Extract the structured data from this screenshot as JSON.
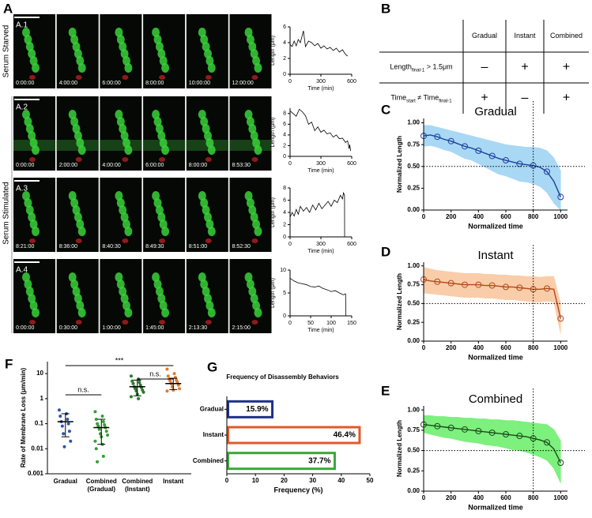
{
  "panels": [
    "A",
    "B",
    "C",
    "D",
    "E",
    "F",
    "G"
  ],
  "panel_a": {
    "side_labels": [
      "Serum Starved",
      "Serum Stimulated"
    ],
    "rows": [
      {
        "label": "A.1",
        "times": [
          "0:00:00",
          "4:00:00",
          "6:00:00",
          "8:00:00",
          "10:00:00",
          "12:00:00"
        ]
      },
      {
        "label": "A.2",
        "times": [
          "0:00:00",
          "2:00:00",
          "4:00:00",
          "6:00:00",
          "8:00:00",
          "8:53:30"
        ]
      },
      {
        "label": "A.3",
        "times": [
          "8:21:00",
          "8:36:00",
          "8:40:30",
          "8:49:30",
          "8:51:00",
          "8:52:30"
        ]
      },
      {
        "label": "A.4",
        "times": [
          "0:00:00",
          "0:30:00",
          "1:00:00",
          "1:45:00",
          "2:13:30",
          "2:15:00"
        ]
      }
    ]
  },
  "table": {
    "header": [
      "Gradual",
      "Instant",
      "Combined"
    ],
    "rows": [
      {
        "label": [
          "Length",
          "final-1",
          " > 1.5μm"
        ],
        "cells": [
          "–",
          "+",
          "+"
        ]
      },
      {
        "label": [
          "Time",
          "start",
          " ≠ Time",
          "final-1"
        ],
        "cells": [
          "+",
          "–",
          "+"
        ]
      }
    ]
  },
  "chart_data": [
    {
      "type": "line",
      "ylabel": "Length (μm)",
      "xlabel": "Time (min)",
      "xlim": [
        0,
        600
      ],
      "ylim": [
        0,
        6
      ],
      "xticks": [
        0,
        300,
        600
      ],
      "yticks": [
        0,
        2,
        4,
        6
      ],
      "x": [
        0,
        20,
        40,
        60,
        80,
        100,
        120,
        130,
        150,
        180,
        210,
        240,
        270,
        300,
        330,
        360,
        390,
        420,
        450,
        480,
        510,
        540,
        560
      ],
      "series": [
        {
          "color": "#000000",
          "values": [
            3.8,
            3.5,
            4.2,
            3.6,
            4.4,
            4.0,
            5.0,
            5.5,
            3.5,
            4.2,
            4.0,
            3.6,
            3.9,
            3.3,
            3.6,
            3.2,
            3.4,
            3.0,
            3.3,
            2.8,
            3.1,
            2.5,
            2.3
          ]
        }
      ]
    },
    {
      "type": "line",
      "ylabel": "Length (μm)",
      "xlabel": "Time (min)",
      "xlim": [
        0,
        600
      ],
      "ylim": [
        0,
        9
      ],
      "xticks": [
        0,
        300,
        600
      ],
      "yticks": [
        0,
        2,
        4,
        6,
        8
      ],
      "x": [
        0,
        30,
        60,
        90,
        120,
        150,
        180,
        210,
        240,
        270,
        300,
        330,
        360,
        390,
        420,
        450,
        480,
        510,
        540,
        560,
        575,
        580,
        590
      ],
      "series": [
        {
          "color": "#000000",
          "values": [
            8.5,
            8.0,
            7.5,
            8.8,
            8.3,
            7.6,
            6.0,
            6.4,
            4.8,
            5.5,
            4.5,
            4.9,
            4.2,
            4.4,
            3.6,
            4.0,
            3.3,
            3.4,
            2.6,
            2.9,
            1.4,
            2.2,
            1.0
          ]
        }
      ]
    },
    {
      "type": "line",
      "ylabel": "Length (μm)",
      "xlabel": "Time (min)",
      "xlim": [
        0,
        600
      ],
      "ylim": [
        0,
        8
      ],
      "xticks": [
        0,
        300,
        600
      ],
      "yticks": [
        0,
        2,
        4,
        6,
        8
      ],
      "x": [
        0,
        20,
        40,
        60,
        80,
        100,
        130,
        160,
        190,
        220,
        250,
        280,
        310,
        340,
        370,
        400,
        430,
        460,
        490,
        510,
        520,
        530,
        531
      ],
      "series": [
        {
          "color": "#000000",
          "values": [
            3.2,
            4.0,
            3.4,
            4.5,
            3.7,
            5.0,
            4.2,
            4.8,
            4.0,
            5.2,
            4.4,
            5.5,
            4.6,
            5.2,
            5.8,
            5.0,
            6.0,
            5.6,
            6.8,
            6.2,
            7.2,
            6.8,
            0
          ]
        }
      ]
    },
    {
      "type": "line",
      "ylabel": "Length (μm)",
      "xlabel": "Time (min)",
      "xlim": [
        0,
        150
      ],
      "ylim": [
        0,
        10
      ],
      "xticks": [
        0,
        50,
        100,
        150
      ],
      "yticks": [
        0,
        5,
        10
      ],
      "x": [
        0,
        10,
        20,
        30,
        40,
        50,
        60,
        70,
        80,
        90,
        100,
        110,
        120,
        130,
        135,
        136
      ],
      "series": [
        {
          "color": "#000000",
          "values": [
            8.2,
            7.6,
            7.2,
            7.0,
            6.8,
            6.4,
            6.3,
            6.5,
            6.0,
            5.7,
            5.3,
            5.5,
            5.0,
            4.6,
            4.8,
            0
          ]
        }
      ]
    },
    {
      "type": "line",
      "title": "Gradual",
      "ylabel": "Normalized Length",
      "xlabel": "Normalized time",
      "markers": true,
      "vline": 800,
      "hline": 0.5,
      "xlim": [
        0,
        1050
      ],
      "ylim": [
        0,
        1.05
      ],
      "xticks": [
        0,
        200,
        400,
        600,
        800,
        1000
      ],
      "yticks": [
        {
          "value": 0,
          "label": "0.00"
        },
        {
          "value": 0.25,
          "label": "0.25"
        },
        {
          "value": 0.5,
          "label": "0.50"
        },
        {
          "value": 0.75,
          "label": "0.75"
        },
        {
          "value": 1,
          "label": "1.00"
        }
      ],
      "x": [
        0,
        50,
        100,
        150,
        200,
        250,
        300,
        350,
        400,
        450,
        500,
        550,
        600,
        650,
        700,
        750,
        800,
        850,
        900,
        950,
        1000
      ],
      "series": [
        {
          "color": "#1f3f9e",
          "band_color": "#a9d8f5",
          "values": [
            0.85,
            0.86,
            0.84,
            0.81,
            0.79,
            0.76,
            0.73,
            0.71,
            0.68,
            0.65,
            0.62,
            0.59,
            0.57,
            0.55,
            0.53,
            0.52,
            0.51,
            0.49,
            0.44,
            0.33,
            0.15
          ],
          "upper": [
            0.97,
            0.97,
            0.95,
            0.93,
            0.91,
            0.89,
            0.87,
            0.85,
            0.83,
            0.81,
            0.79,
            0.77,
            0.75,
            0.74,
            0.73,
            0.72,
            0.72,
            0.71,
            0.68,
            0.6,
            0.45
          ],
          "lower": [
            0.73,
            0.74,
            0.72,
            0.69,
            0.67,
            0.63,
            0.59,
            0.57,
            0.53,
            0.49,
            0.45,
            0.41,
            0.39,
            0.36,
            0.33,
            0.32,
            0.3,
            0.27,
            0.2,
            0.08,
            0.0
          ]
        }
      ]
    },
    {
      "type": "line",
      "title": "Instant",
      "ylabel": "Normalized Length",
      "xlabel": "Normalized time",
      "markers": true,
      "vline": 800,
      "hline": 0.5,
      "xlim": [
        0,
        1050
      ],
      "ylim": [
        0,
        1.05
      ],
      "xticks": [
        0,
        200,
        400,
        600,
        800,
        1000
      ],
      "yticks": [
        {
          "value": 0,
          "label": "0.00"
        },
        {
          "value": 0.25,
          "label": "0.25"
        },
        {
          "value": 0.5,
          "label": "0.50"
        },
        {
          "value": 0.75,
          "label": "0.75"
        },
        {
          "value": 1,
          "label": "1.00"
        }
      ],
      "x": [
        0,
        50,
        100,
        150,
        200,
        250,
        300,
        350,
        400,
        450,
        500,
        550,
        600,
        650,
        700,
        750,
        800,
        850,
        900,
        950,
        1000
      ],
      "series": [
        {
          "color": "#b5471a",
          "band_color": "#f9cda9",
          "values": [
            0.82,
            0.8,
            0.79,
            0.78,
            0.77,
            0.76,
            0.75,
            0.75,
            0.75,
            0.74,
            0.74,
            0.73,
            0.72,
            0.72,
            0.71,
            0.7,
            0.69,
            0.69,
            0.7,
            0.69,
            0.3
          ],
          "upper": [
            0.98,
            0.96,
            0.94,
            0.93,
            0.92,
            0.91,
            0.9,
            0.9,
            0.9,
            0.89,
            0.89,
            0.88,
            0.88,
            0.87,
            0.87,
            0.86,
            0.86,
            0.85,
            0.86,
            0.86,
            0.5
          ],
          "lower": [
            0.64,
            0.63,
            0.62,
            0.61,
            0.6,
            0.59,
            0.58,
            0.58,
            0.58,
            0.57,
            0.57,
            0.56,
            0.55,
            0.55,
            0.54,
            0.53,
            0.52,
            0.52,
            0.53,
            0.52,
            0.1
          ]
        }
      ]
    },
    {
      "type": "line",
      "title": "Combined",
      "ylabel": "Normalized Length",
      "xlabel": "Normalized time",
      "markers": true,
      "vline": 800,
      "hline": 0.5,
      "xlim": [
        0,
        1050
      ],
      "ylim": [
        0,
        1.05
      ],
      "xticks": [
        0,
        200,
        400,
        600,
        800,
        1000
      ],
      "yticks": [
        {
          "value": 0,
          "label": "0.00"
        },
        {
          "value": 0.25,
          "label": "0.25"
        },
        {
          "value": 0.5,
          "label": "0.50"
        },
        {
          "value": 0.75,
          "label": "0.75"
        },
        {
          "value": 1,
          "label": "1.00"
        }
      ],
      "x": [
        0,
        50,
        100,
        150,
        200,
        250,
        300,
        350,
        400,
        450,
        500,
        550,
        600,
        650,
        700,
        750,
        800,
        850,
        900,
        950,
        1000
      ],
      "series": [
        {
          "color": "#1a4a1a",
          "band_color": "#7df07d",
          "values": [
            0.82,
            0.81,
            0.8,
            0.79,
            0.78,
            0.77,
            0.76,
            0.75,
            0.74,
            0.73,
            0.72,
            0.71,
            0.7,
            0.69,
            0.68,
            0.67,
            0.65,
            0.63,
            0.6,
            0.52,
            0.35
          ],
          "upper": [
            0.93,
            0.93,
            0.92,
            0.92,
            0.91,
            0.91,
            0.9,
            0.9,
            0.89,
            0.89,
            0.88,
            0.88,
            0.87,
            0.87,
            0.86,
            0.85,
            0.84,
            0.83,
            0.82,
            0.76,
            0.62
          ],
          "lower": [
            0.72,
            0.7,
            0.68,
            0.66,
            0.65,
            0.63,
            0.61,
            0.6,
            0.59,
            0.57,
            0.56,
            0.55,
            0.53,
            0.51,
            0.5,
            0.48,
            0.45,
            0.42,
            0.38,
            0.28,
            0.1
          ]
        }
      ]
    },
    {
      "type": "strip",
      "ylabel": "Rate of Membrane Loss (μm/min)",
      "log_y": true,
      "ylim": [
        0.001,
        30
      ],
      "yticks": [
        0.001,
        0.01,
        0.1,
        1,
        10
      ],
      "categories": [
        [
          "Gradual"
        ],
        [
          "Combined",
          "(Gradual)"
        ],
        [
          "Combined",
          "(Instant)"
        ],
        [
          "Instant"
        ]
      ],
      "annotations": [
        "***",
        "n.s.",
        "n.s."
      ],
      "groups": [
        {
          "color": "#2f55a8",
          "points": [
            0.35,
            0.25,
            0.2,
            0.15,
            0.12,
            0.1,
            0.08,
            0.05,
            0.04,
            0.02,
            0.012
          ],
          "mean": 0.12,
          "range": [
            0.03,
            0.25
          ]
        },
        {
          "color": "#35a035",
          "points": [
            0.3,
            0.2,
            0.15,
            0.12,
            0.1,
            0.09,
            0.08,
            0.07,
            0.06,
            0.05,
            0.04,
            0.035,
            0.03,
            0.02,
            0.015,
            0.01,
            0.005,
            0.003
          ],
          "mean": 0.07,
          "range": [
            0.015,
            0.15
          ]
        },
        {
          "color": "#2b7a2b",
          "points": [
            8,
            6,
            5,
            4.5,
            4,
            3.5,
            3,
            2.8,
            2.5,
            2.2,
            2,
            1.8,
            1.5,
            1.2,
            1
          ],
          "mean": 3,
          "range": [
            1.3,
            5.5
          ]
        },
        {
          "color": "#e07b30",
          "points": [
            15,
            10,
            8,
            7,
            6,
            5.5,
            5,
            4.5,
            4,
            3.5,
            3,
            2.5,
            2.2,
            2
          ],
          "mean": 4,
          "range": [
            2.3,
            6.5
          ]
        }
      ]
    },
    {
      "type": "bar",
      "orientation": "horizontal",
      "title": "Frequency of Disassembly Behaviors",
      "xlabel": "Frequency   (%)",
      "categories": [
        "Gradual",
        "Instant",
        "Combined"
      ],
      "values": [
        15.9,
        46.4,
        37.7
      ],
      "value_labels": [
        "15.9%",
        "46.4%",
        "37.7%"
      ],
      "colors": [
        "#1f2f8a",
        "#e05a28",
        "#3aa83a"
      ],
      "xlim": [
        0,
        50
      ],
      "xticks": [
        0,
        10,
        20,
        30,
        40,
        50
      ]
    }
  ]
}
